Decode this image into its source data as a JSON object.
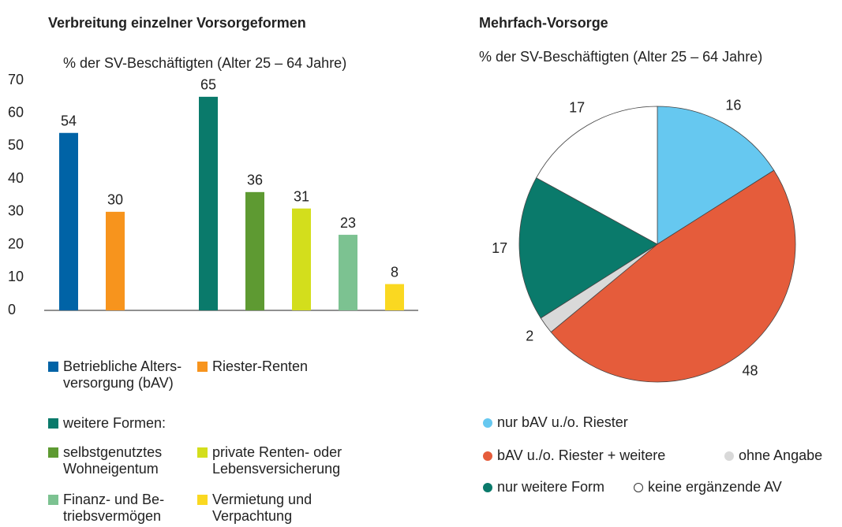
{
  "chart_data": [
    {
      "type": "bar",
      "title": "Verbreitung einzelner Vorsorgeformen",
      "subtitle": "% der SV-Beschäftigten (Alter 25 – 64 Jahre)",
      "categories": [
        "Betriebliche Alters-\nversorgung (bAV)",
        "Riester-Renten",
        null,
        "weitere Formen:",
        "selbstgenutztes\nWohneigentum",
        "private Renten- oder\nLebensversicherung",
        "Finanz- und Be-\ntriebsvermögen",
        "Vermietung und\nVerpachtung"
      ],
      "values": [
        54,
        30,
        null,
        65,
        36,
        31,
        23,
        8
      ],
      "colors": [
        "#0063a6",
        "#f7941d",
        null,
        "#0a7a6b",
        "#5e9a32",
        "#d3de1c",
        "#7cc291",
        "#fad821"
      ],
      "ylim": [
        0,
        70
      ],
      "yticks": [
        0,
        10,
        20,
        30,
        40,
        50,
        60,
        70
      ]
    },
    {
      "type": "pie",
      "title": "Mehrfach-Vorsorge",
      "subtitle": "% der SV-Beschäftigten (Alter 25 – 64 Jahre)",
      "categories": [
        "nur bAV u./o. Riester",
        "bAV u./o. Riester + weitere",
        "ohne Angabe",
        "nur weitere Form",
        "keine ergänzende AV"
      ],
      "values": [
        16,
        48,
        2,
        17,
        17
      ],
      "colors": [
        "#66c8f0",
        "#e55c3b",
        "#d9d9d9",
        "#0a7a6b",
        "#ffffff"
      ]
    }
  ]
}
